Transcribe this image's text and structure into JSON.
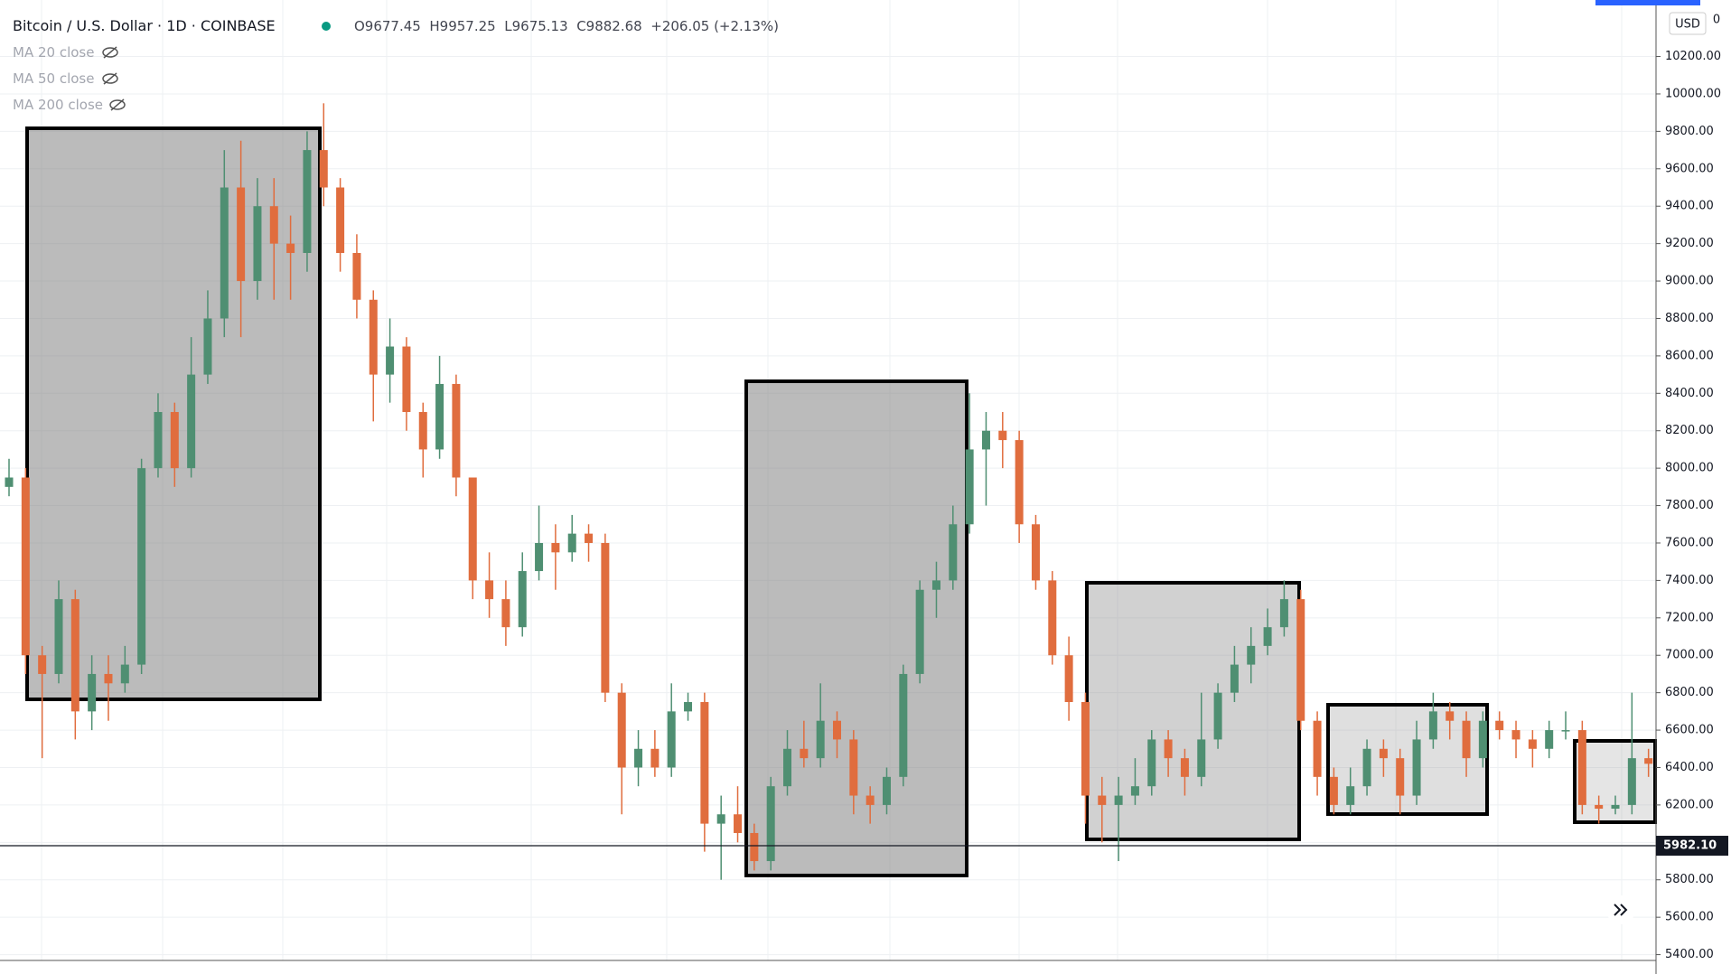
{
  "chart_data": {
    "type": "candlestick",
    "header": {
      "symbol": "Bitcoin / U.S. Dollar · 1D · COINBASE",
      "open": "O9677.45",
      "high": "H9957.25",
      "low": "L9675.13",
      "close": "C9882.68",
      "change": "+206.05 (+2.13%)"
    },
    "indicators": [
      "MA 20 close",
      "MA 50 close",
      "MA 200 close"
    ],
    "currency": "USD",
    "corner_label": "0",
    "up_color": "#4f8f72",
    "down_color": "#e06d3e",
    "grid": true,
    "open": [
      7900,
      7950,
      7000,
      6900,
      7300,
      6700,
      6900,
      6850,
      6950,
      8000,
      8300,
      8000,
      8500,
      8800,
      9500,
      9000,
      9400,
      9200,
      9150,
      9700,
      9500,
      9150,
      8900,
      8500,
      8650,
      8300,
      8100,
      8450,
      7950,
      7400,
      7300,
      7150,
      7450,
      7600,
      7550,
      7650,
      7600,
      6800,
      6400,
      6500,
      6400,
      6700,
      6750,
      6100,
      6150,
      6050,
      5900,
      6300,
      6500,
      6450,
      6650,
      6550,
      6250,
      6200,
      6350,
      6900,
      7350,
      7400,
      7700,
      8100,
      8200,
      8150,
      7700,
      7400,
      7000,
      6750,
      6250,
      6200,
      6250,
      6300,
      6550,
      6450,
      6350,
      6550,
      6800,
      6950,
      7050,
      7150,
      7300,
      6650,
      6350,
      6200,
      6300,
      6500,
      6450,
      6250,
      6550,
      6700,
      6650,
      6450,
      6650,
      6600,
      6550,
      6500,
      6600,
      6600,
      6200,
      6180,
      6200,
      6450
    ],
    "high": [
      8050,
      8000,
      7050,
      7400,
      7350,
      7000,
      7000,
      7050,
      8050,
      8400,
      8350,
      8700,
      8950,
      9700,
      9750,
      9550,
      9550,
      9350,
      9800,
      9950,
      9550,
      9250,
      8950,
      8800,
      8700,
      8350,
      8600,
      8500,
      7950,
      7550,
      7400,
      7550,
      7800,
      7700,
      7750,
      7700,
      7650,
      6850,
      6600,
      6600,
      6850,
      6800,
      6800,
      6250,
      6300,
      6100,
      6350,
      6600,
      6650,
      6850,
      6700,
      6600,
      6300,
      6400,
      6950,
      7400,
      7500,
      7800,
      8400,
      8300,
      8300,
      8200,
      7750,
      7450,
      7100,
      6800,
      6350,
      6350,
      6450,
      6600,
      6600,
      6500,
      6800,
      6850,
      7050,
      7150,
      7250,
      7400,
      7350,
      6700,
      6400,
      6400,
      6550,
      6550,
      6500,
      6650,
      6800,
      6750,
      6700,
      6700,
      6700,
      6650,
      6600,
      6650,
      6700,
      6650,
      6250,
      6250,
      6800,
      6500
    ],
    "low": [
      7850,
      6900,
      6450,
      6850,
      6550,
      6600,
      6650,
      6800,
      6900,
      7950,
      7900,
      7950,
      8450,
      8700,
      8700,
      8900,
      8900,
      8900,
      9050,
      9400,
      9050,
      8800,
      8250,
      8350,
      8200,
      7950,
      8050,
      7850,
      7300,
      7200,
      7050,
      7100,
      7400,
      7350,
      7500,
      7500,
      6750,
      6150,
      6300,
      6350,
      6350,
      6650,
      5950,
      5800,
      6000,
      5850,
      5850,
      6250,
      6400,
      6400,
      6450,
      6150,
      6100,
      6150,
      6300,
      6850,
      7200,
      7350,
      7650,
      7800,
      8000,
      7600,
      7350,
      6950,
      6650,
      6100,
      6000,
      5900,
      6200,
      6250,
      6350,
      6250,
      6300,
      6500,
      6750,
      6850,
      7000,
      7100,
      6600,
      6250,
      6150,
      6150,
      6250,
      6350,
      6150,
      6200,
      6500,
      6550,
      6350,
      6400,
      6550,
      6450,
      6400,
      6450,
      6550,
      6150,
      6100,
      6150,
      6150,
      6350
    ],
    "close": [
      7950,
      7000,
      6900,
      7300,
      6700,
      6900,
      6850,
      6950,
      8000,
      8300,
      8000,
      8500,
      8800,
      9500,
      9000,
      9400,
      9200,
      9150,
      9700,
      9500,
      9150,
      8900,
      8500,
      8650,
      8300,
      8100,
      8450,
      7950,
      7400,
      7300,
      7150,
      7450,
      7600,
      7550,
      7650,
      7600,
      6800,
      6400,
      6500,
      6400,
      6700,
      6750,
      6100,
      6150,
      6050,
      5900,
      6300,
      6500,
      6450,
      6650,
      6550,
      6250,
      6200,
      6350,
      6900,
      7350,
      7400,
      7700,
      8100,
      8200,
      8150,
      7700,
      7400,
      7000,
      6750,
      6250,
      6200,
      6250,
      6300,
      6550,
      6450,
      6350,
      6550,
      6800,
      6950,
      7050,
      7150,
      7300,
      6650,
      6350,
      6200,
      6300,
      6500,
      6450,
      6250,
      6550,
      6700,
      6650,
      6450,
      6650,
      6600,
      6550,
      6500,
      6600,
      6600,
      6200,
      6180,
      6200,
      6450,
      6420
    ],
    "price_line": {
      "value": 5982.1,
      "label": "5982.10"
    },
    "ylim": [
      5369,
      10502
    ],
    "yticks": [
      {
        "value": 5400,
        "label": "5400.00"
      },
      {
        "value": 5600,
        "label": "5600.00"
      },
      {
        "value": 5800,
        "label": "5800.00"
      },
      {
        "value": 6000,
        "label": "6000.00"
      },
      {
        "value": 6200,
        "label": "6200.00"
      },
      {
        "value": 6400,
        "label": "6400.00"
      },
      {
        "value": 6600,
        "label": "6600.00"
      },
      {
        "value": 6800,
        "label": "6800.00"
      },
      {
        "value": 7000,
        "label": "7000.00"
      },
      {
        "value": 7200,
        "label": "7200.00"
      },
      {
        "value": 7400,
        "label": "7400.00"
      },
      {
        "value": 7600,
        "label": "7600.00"
      },
      {
        "value": 7800,
        "label": "7800.00"
      },
      {
        "value": 8000,
        "label": "8000.00"
      },
      {
        "value": 8200,
        "label": "8200.00"
      },
      {
        "value": 8400,
        "label": "8400.00"
      },
      {
        "value": 8600,
        "label": "8600.00"
      },
      {
        "value": 8800,
        "label": "8800.00"
      },
      {
        "value": 9000,
        "label": "9000.00"
      },
      {
        "value": 9200,
        "label": "9200.00"
      },
      {
        "value": 9400,
        "label": "9400.00"
      },
      {
        "value": 9600,
        "label": "9600.00"
      },
      {
        "value": 9800,
        "label": "9800.00"
      },
      {
        "value": 10000,
        "label": "10000.00"
      },
      {
        "value": 10200,
        "label": "10200.00"
      }
    ]
  }
}
